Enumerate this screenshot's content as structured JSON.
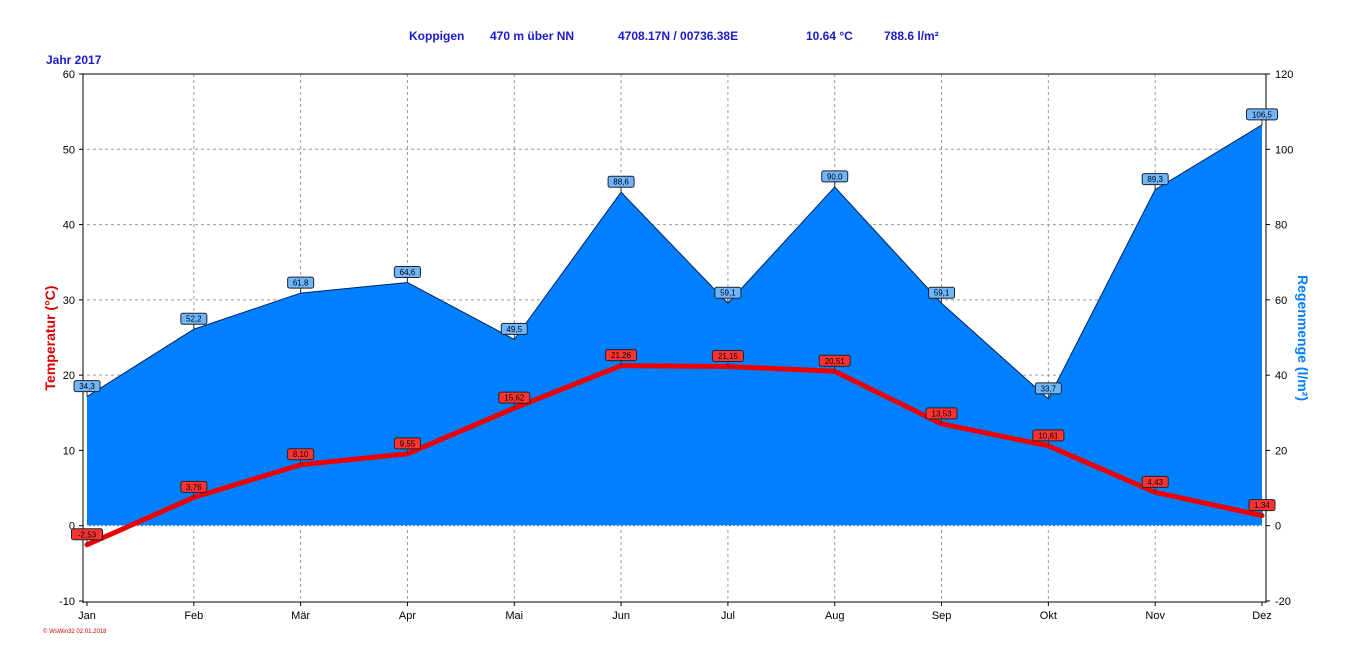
{
  "header": {
    "station": "Koppigen",
    "altitude": "470 m über NN",
    "coords": "4708.17N / 00736.38E",
    "mean_temp": "10.64 °C",
    "total_rain": "788.6 l/m²",
    "year": "Jahr  2017",
    "footer": "© WsWin32  02.01.2018"
  },
  "colors": {
    "header_text": "#1a1ad0",
    "temperature": "#ee0000",
    "rain_fill": "#0080ff",
    "rain_label_bg": "#6fb6ff",
    "temp_label_bg": "#ff3333",
    "left_axis_title": "#dd0000",
    "right_axis_title": "#0080ff"
  },
  "chart_data": {
    "type": "area+line",
    "categories": [
      "Jan",
      "Feb",
      "Mär",
      "Apr",
      "Mai",
      "Jun",
      "Jul",
      "Aug",
      "Sep",
      "Okt",
      "Nov",
      "Dez"
    ],
    "series": [
      {
        "name": "Regenmenge",
        "axis": "right",
        "type": "area",
        "values": [
          34.3,
          52.2,
          61.8,
          64.6,
          49.5,
          88.6,
          59.1,
          90.0,
          59.1,
          33.7,
          89.3,
          106.5
        ],
        "labels": [
          "34,3",
          "52,2",
          "61,8",
          "64,6",
          "49,5",
          "88,6",
          "59,1",
          "90,0",
          "59,1",
          "33,7",
          "89,3",
          "106,5"
        ]
      },
      {
        "name": "Temperatur",
        "axis": "left",
        "type": "line",
        "values": [
          -2.53,
          3.76,
          8.1,
          9.55,
          15.62,
          21.26,
          21.15,
          20.51,
          13.53,
          10.61,
          4.43,
          1.34
        ],
        "labels": [
          "-2,53",
          "3,76",
          "8,10",
          "9,55",
          "15,62",
          "21,26",
          "21,15",
          "20,51",
          "13,53",
          "10,61",
          "4,43",
          "1,34"
        ]
      }
    ],
    "ylabel": "Temperatur  (°C)",
    "ylabel_right": "Regenmenge  (l/m²)",
    "ylim": [
      -10,
      60
    ],
    "ylim_right": [
      -20,
      120
    ],
    "yticks": [
      -10,
      0,
      10,
      20,
      30,
      40,
      50,
      60
    ],
    "yticks_right": [
      -20,
      0,
      20,
      40,
      60,
      80,
      100,
      120
    ],
    "grid": true
  }
}
